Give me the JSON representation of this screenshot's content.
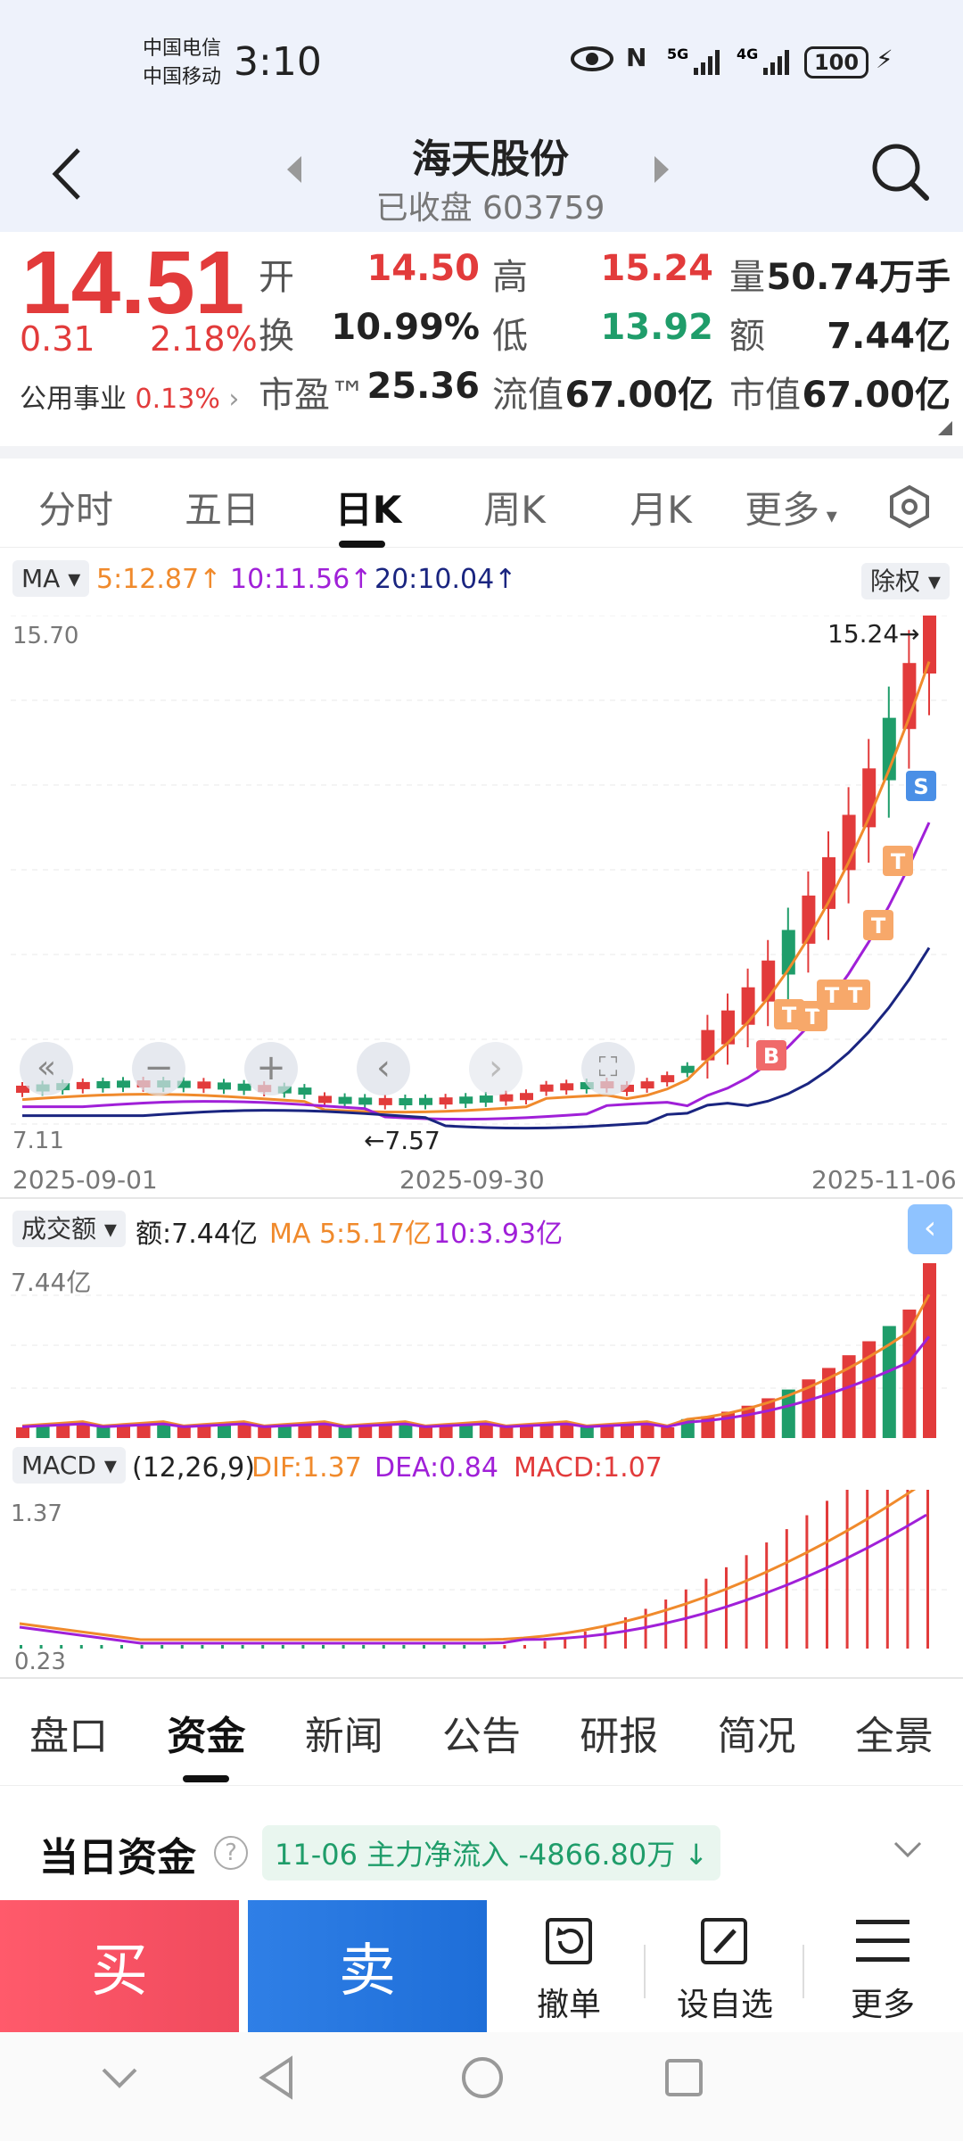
{
  "status": {
    "carrier1": "中国电信",
    "carrier2": "中国移动",
    "time": "3:10",
    "battery": "100"
  },
  "header": {
    "name": "海天股份",
    "status": "已收盘 603759"
  },
  "quote": {
    "price": "14.51",
    "change": "0.31",
    "change_pct": "2.18%",
    "sector": "公用事业",
    "sector_pct": "0.13%",
    "rows": [
      [
        {
          "label": "开",
          "value": "14.50",
          "color": "red"
        },
        {
          "label": "高",
          "value": "15.24",
          "color": "red"
        },
        {
          "label": "量",
          "value": "50.74万手",
          "color": "blk"
        }
      ],
      [
        {
          "label": "换",
          "value": "10.99%",
          "color": "blk"
        },
        {
          "label": "低",
          "value": "13.92",
          "color": "green"
        },
        {
          "label": "额",
          "value": "7.44亿",
          "color": "blk"
        }
      ],
      [
        {
          "label": "市盈™",
          "value": "25.36",
          "color": "blk"
        },
        {
          "label": "流值",
          "value": "67.00亿",
          "color": "blk"
        },
        {
          "label": "市值",
          "value": "67.00亿",
          "color": "blk"
        }
      ]
    ]
  },
  "chart_tabs": [
    "分时",
    "五日",
    "日K",
    "周K",
    "月K",
    "更多"
  ],
  "ma_legend": {
    "selector": "MA",
    "ma5": "5:12.87",
    "ma10": "10:11.56",
    "ma20": "20:10.04",
    "adjust": "除权"
  },
  "kline": {
    "ymax_label": "15.70",
    "ymin_label": "7.11",
    "high_mark": "15.24→",
    "low_mark": "←7.57",
    "dates": [
      "2025-09-01",
      "2025-09-30",
      "2025-11-06"
    ],
    "buy_marker": "B",
    "sell_marker": "S",
    "t_marker": "T"
  },
  "volume_legend": {
    "selector": "成交额",
    "amount": "额:7.44亿",
    "ma5": "MA 5:5.17亿",
    "ma10": "10:3.93亿",
    "ymax_label": "7.44亿"
  },
  "macd_legend": {
    "selector": "MACD",
    "params": "(12,26,9)",
    "dif": "DIF:1.37",
    "dea": "DEA:0.84",
    "macd": "MACD:1.07",
    "ymax_label": "1.37",
    "ymin_label": "0.23"
  },
  "bottom_tabs": [
    "盘口",
    "资金",
    "新闻",
    "公告",
    "研报",
    "简况",
    "全景"
  ],
  "fund": {
    "title": "当日资金",
    "info": "11-06 主力净流入 -4866.80万"
  },
  "actions": {
    "buy": "买",
    "sell": "卖",
    "cancel": "撤单",
    "watch": "设自选",
    "more": "更多"
  },
  "colors": {
    "up": "#e23b3b",
    "down": "#1f9d6a",
    "ma5": "#f08a2c",
    "ma10": "#a020d8",
    "ma20": "#1a2580"
  }
}
